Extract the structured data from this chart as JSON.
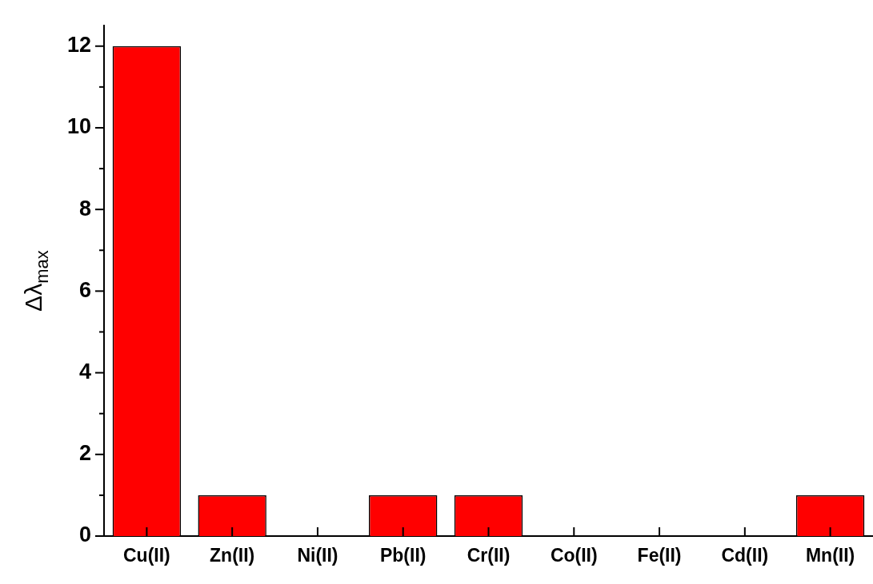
{
  "chart_data": {
    "type": "bar",
    "ylabel": "Δλ$_{max}$",
    "categories": [
      "Cu(II)",
      "Zn(II)",
      "Ni(II)",
      "Pb(II)",
      "Cr(II)",
      "Co(II)",
      "Fe(II)",
      "Cd(II)",
      "Mn(II)"
    ],
    "values": [
      12,
      1,
      0,
      1,
      1,
      0,
      0,
      0,
      1
    ],
    "color": "#ff0000",
    "ylim": [
      0,
      12.5
    ],
    "yticks": [
      0,
      {
        "value": 1,
        "label": null
      },
      2,
      {
        "value": 3,
        "label": null
      },
      4,
      {
        "value": 5,
        "label": null
      },
      6,
      {
        "value": 7,
        "label": null
      },
      8,
      {
        "value": 9,
        "label": null
      },
      10,
      {
        "value": 11,
        "label": null
      },
      12
    ],
    "grid": false,
    "legend": false
  }
}
